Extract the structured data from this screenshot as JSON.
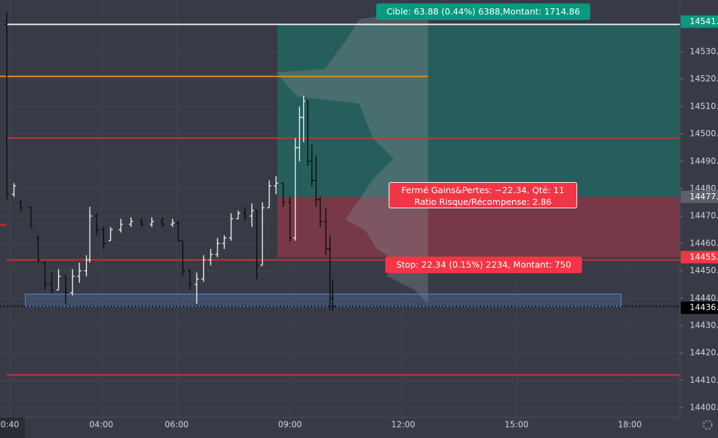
{
  "chart_data": {
    "type": "ohlc",
    "x": [
      1.5,
      1.69,
      1.87,
      2.14,
      2.33,
      2.51,
      2.69,
      2.87,
      3.06,
      3.24,
      3.42,
      3.61,
      3.7,
      3.88,
      4.06,
      4.25,
      4.52,
      4.79,
      5.07,
      5.34,
      5.62,
      5.89,
      6.04,
      6.16,
      6.35,
      6.53,
      6.71,
      6.9,
      7.08,
      7.26,
      7.44,
      7.63,
      7.81,
      7.99,
      8.12,
      8.27,
      8.45,
      8.63,
      8.82,
      9.0,
      9.14,
      9.25,
      9.36,
      9.47,
      9.58,
      9.69,
      9.8,
      9.95,
      10.06,
      10.13
    ],
    "open": [
      14540,
      14478,
      14475,
      14473,
      14462,
      14453,
      14445,
      14443,
      14448,
      14442,
      14448,
      14450,
      14454,
      14470,
      14465,
      14461,
      14465,
      14467,
      14468,
      14467,
      14468,
      14467,
      14467.5,
      14461,
      14450,
      14445,
      14447,
      14454,
      14456,
      14460,
      14462,
      14469,
      14471,
      14470,
      14472,
      14452,
      14473,
      14481,
      14482,
      14475,
      14462,
      14495,
      14506,
      14512,
      14490,
      14483,
      14476,
      14468,
      14458,
      14440
    ],
    "high": [
      14544.3,
      14482,
      14476,
      14473.4,
      14463,
      14453.5,
      14449.4,
      14450.6,
      14448,
      14450.6,
      14453,
      14455.7,
      14473.4,
      14471,
      14466,
      14466,
      14469,
      14469.5,
      14469.5,
      14469.5,
      14469.5,
      14469,
      14468,
      14461,
      14450.6,
      14449.4,
      14455.7,
      14458,
      14462,
      14463,
      14471,
      14472,
      14473.4,
      14474.6,
      14472,
      14475,
      14483,
      14484.6,
      14482,
      14477,
      14498.5,
      14510,
      14514,
      14512,
      14496,
      14492,
      14477,
      14473,
      14463,
      14447
    ],
    "low": [
      14476,
      14477,
      14472,
      14466,
      14453,
      14443,
      14441.8,
      14443,
      14438,
      14441,
      14445.6,
      14448,
      14453,
      14463,
      14458,
      14461,
      14464,
      14466,
      14466,
      14466,
      14466,
      14466,
      14460.7,
      14448,
      14443,
      14438,
      14446,
      14452,
      14455,
      14458,
      14461,
      14469,
      14468,
      14466,
      14447,
      14452,
      14473,
      14478,
      14473.4,
      14460.7,
      14461,
      14490,
      14497,
      14488.4,
      14481,
      14473.4,
      14466,
      14455.7,
      14435.5,
      14435.5
    ],
    "close": [
      14478,
      14481,
      14473,
      14466,
      14454,
      14445,
      14443,
      14448,
      14442,
      14448,
      14450,
      14454,
      14470,
      14465,
      14460,
      14465,
      14467,
      14468,
      14467,
      14468,
      14467,
      14467.5,
      14461,
      14450,
      14445,
      14447,
      14454,
      14456,
      14460,
      14462,
      14469,
      14471,
      14470,
      14472,
      14452,
      14473,
      14481,
      14482,
      14475,
      14462,
      14495,
      14506,
      14512,
      14490,
      14483,
      14476,
      14468,
      14458,
      14440,
      14437
    ],
    "up_color": "#e8e8e8",
    "down_color": "#0c0d10",
    "xlim": [
      1.32,
      19.33
    ],
    "ylim": [
      14396.5,
      14548.9
    ],
    "xticks": [
      {
        "value": 1.58,
        "label": "0:40"
      },
      {
        "value": 4,
        "label": "04:00"
      },
      {
        "value": 6,
        "label": "06:00"
      },
      {
        "value": 9,
        "label": "09:00"
      },
      {
        "value": 12,
        "label": "12:00"
      },
      {
        "value": 15,
        "label": "15:00"
      },
      {
        "value": 18,
        "label": "18:00"
      }
    ],
    "yticks": [
      {
        "value": 14400,
        "label": "14400."
      },
      {
        "value": 14410,
        "label": "14410."
      },
      {
        "value": 14420,
        "label": "14420."
      },
      {
        "value": 14430,
        "label": "14430."
      },
      {
        "value": 14440,
        "label": "14440."
      },
      {
        "value": 14450,
        "label": "14450."
      },
      {
        "value": 14460,
        "label": "14460."
      },
      {
        "value": 14470,
        "label": "14470."
      },
      {
        "value": 14480,
        "label": "14480."
      },
      {
        "value": 14490,
        "label": "14490."
      },
      {
        "value": 14500,
        "label": "14500."
      },
      {
        "value": 14510,
        "label": "14510."
      },
      {
        "value": 14520,
        "label": "14520."
      },
      {
        "value": 14530,
        "label": "14530."
      }
    ],
    "grid": true,
    "levels": [
      {
        "price": 14540,
        "color": "#f0f0f0",
        "from": 1.5,
        "to": 19.33
      },
      {
        "price": 14521,
        "color": "#e0901c",
        "from": 1.32,
        "to": 12.65
      },
      {
        "price": 14498.5,
        "color": "#d32f2f",
        "from": 1.5,
        "to": 19.33
      },
      {
        "price": 14466.7,
        "color": "#d32f2f",
        "from": 1.32,
        "to": 1.5
      },
      {
        "price": 14454,
        "color": "#d32f2f",
        "from": 1.5,
        "to": 19.33
      },
      {
        "price": 14412,
        "color": "#d32f2f",
        "from": 1.5,
        "to": 19.33
      }
    ],
    "last_price_line": 14437,
    "zone": {
      "low": 14437,
      "high": 14441.5,
      "from": 1.99,
      "to": 17.77
    },
    "position": {
      "entry": 14477,
      "target": 14540,
      "stop": 14455,
      "from": 8.67,
      "to": 19.33
    },
    "price_labels": [
      {
        "value": 14541,
        "label": "14541.",
        "color": "#089981"
      },
      {
        "value": 14477,
        "label": "14477.",
        "color": "#5d606b"
      },
      {
        "value": 14455,
        "label": "14455.",
        "color": "#f23645"
      },
      {
        "value": 14436.5,
        "label": "14436.",
        "color": "#000000"
      }
    ],
    "annotations": {
      "target": "Cible: 63.88 (0.44%) 6388,Montant: 1714.86",
      "closed_line1": "Fermé Gains&Pertes: −22.34, Qté: 11",
      "closed_line2": "Ratio Risque/Récompense: 2.86",
      "stop": "Stop: 22.34 (0.15%) 2234, Montant: 750"
    }
  }
}
